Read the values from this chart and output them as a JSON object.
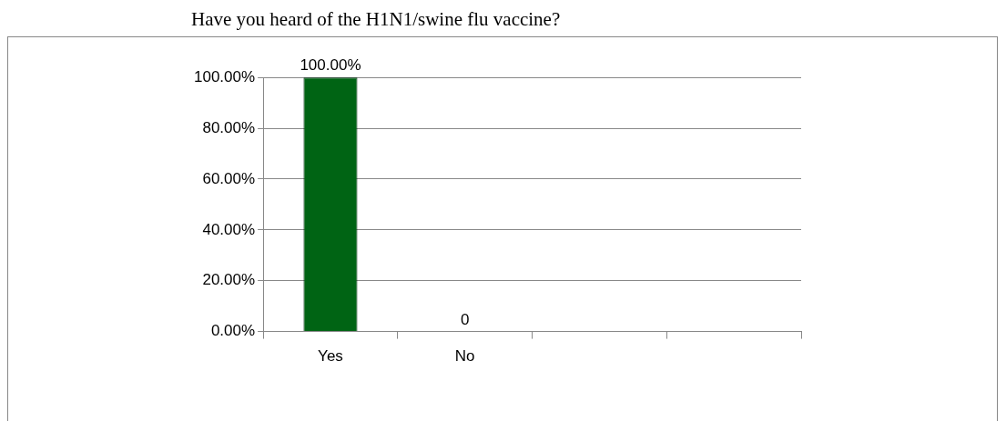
{
  "chart_data": {
    "type": "bar",
    "title": "Have you heard of the H1N1/swine flu vaccine?",
    "categories": [
      "Yes",
      "No",
      null,
      null
    ],
    "values": [
      100,
      0,
      null,
      null
    ],
    "value_labels": [
      "100.00%",
      "0",
      null,
      null
    ],
    "color": "#006414",
    "ylim": [
      0,
      100
    ],
    "yticks": [
      {
        "value": 0,
        "label": "0.00%"
      },
      {
        "value": 20,
        "label": "20.00%"
      },
      {
        "value": 40,
        "label": "40.00%"
      },
      {
        "value": 60,
        "label": "60.00%"
      },
      {
        "value": 80,
        "label": "80.00%"
      },
      {
        "value": 100,
        "label": "100.00%"
      }
    ],
    "grid": "y",
    "legend": false
  }
}
